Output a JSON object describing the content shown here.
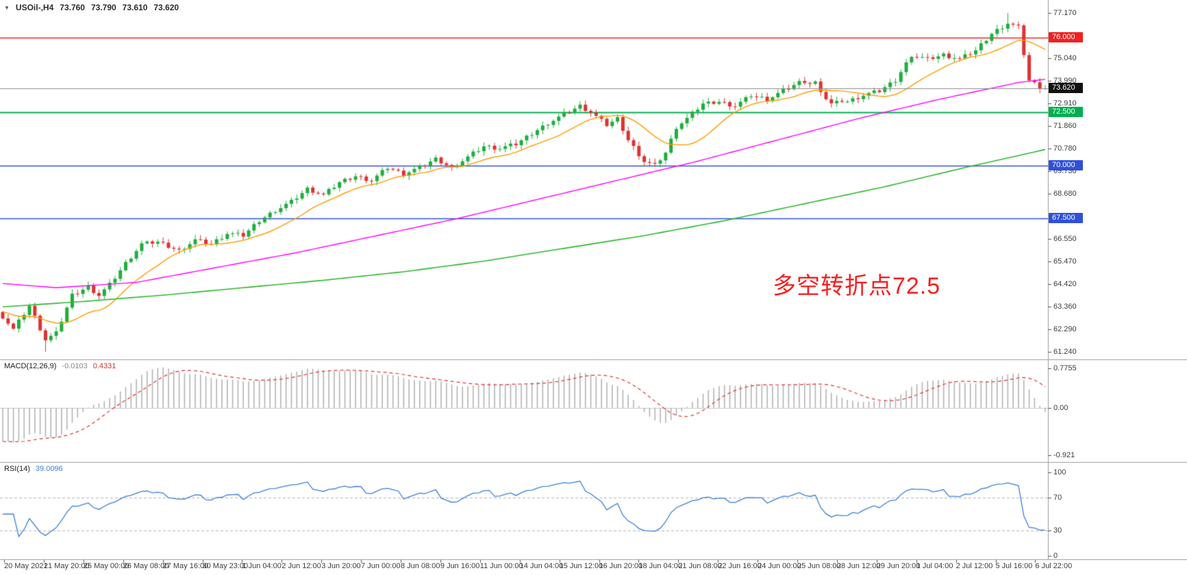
{
  "title": {
    "marker": "▼",
    "symbol": "USOil-,H4",
    "open": "73.760",
    "high": "73.790",
    "low": "73.610",
    "close": "73.620"
  },
  "annotation": {
    "text": "多空转折点72.5",
    "color": "#f61f1f"
  },
  "colors": {
    "bull": "#1fae3d",
    "bear": "#e03131",
    "ma_fast": "#ff9c00",
    "ma_mid": "#ff00ff",
    "ma_slow": "#2eb82e",
    "macd_hist": "#b3b3b3",
    "macd_signal": "#e03131",
    "rsi_line": "#3d7fd6",
    "current_price_badge": "#111111",
    "axis_text": "#3c3c3c"
  },
  "chart_data": {
    "type": "candlestick",
    "title": "USOil-,H4",
    "timeframe": "H4",
    "price_axis_range": [
      60.88,
      77.78
    ],
    "price_axis_ticks": [
      "77.170",
      "75.040",
      "73.990",
      "72.910",
      "71.860",
      "70.780",
      "69.730",
      "68.680",
      "66.550",
      "65.470",
      "64.420",
      "63.360",
      "62.290",
      "61.240"
    ],
    "levels": [
      {
        "value": 76.0,
        "label": "76.000",
        "color": "#f02020",
        "width": 1.4
      },
      {
        "value": 72.5,
        "label": "72.500",
        "color": "#00b050",
        "width": 2
      },
      {
        "value": 70.0,
        "label": "70.000",
        "color": "#3050d8",
        "width": 1.6
      },
      {
        "value": 67.5,
        "label": "67.500",
        "color": "#3050d8",
        "width": 1.6
      }
    ],
    "current_price": {
      "value": 73.62,
      "label": "73.620"
    },
    "time_labels": [
      "20 May 2021",
      "21 May 20:00",
      "25 May 00:00",
      "26 May 08:00",
      "27 May 16:00",
      "30 May 23:00",
      "1 Jun 04:00",
      "2 Jun 12:00",
      "3 Jun 20:00",
      "7 Jun 00:00",
      "8 Jun 08:00",
      "9 Jun 16:00",
      "11 Jun 00:00",
      "14 Jun 04:00",
      "15 Jun 12:00",
      "16 Jun 20:00",
      "18 Jun 04:00",
      "21 Jun 08:00",
      "22 Jun 16:00",
      "24 Jun 00:00",
      "25 Jun 08:00",
      "28 Jun 12:00",
      "29 Jun 20:00",
      "1 Jul 04:00",
      "2 Jul 12:00",
      "5 Jul 16:00",
      "6 Jul 22:00"
    ],
    "closes": [
      62.9,
      62.6,
      62.3,
      62.67,
      63.03,
      63.4,
      62.87,
      62.33,
      61.8,
      61.95,
      62.1,
      62.7,
      63.3,
      63.9,
      64.03,
      64.17,
      64.3,
      64.1,
      63.9,
      64.15,
      64.4,
      64.73,
      65.07,
      65.4,
      65.7,
      66.0,
      66.3,
      66.33,
      66.37,
      66.4,
      66.3,
      66.2,
      66.1,
      66.0,
      66.17,
      66.33,
      66.5,
      66.43,
      66.37,
      66.3,
      66.47,
      66.63,
      66.8,
      66.77,
      66.73,
      66.7,
      66.93,
      67.17,
      67.4,
      67.57,
      67.73,
      67.9,
      68.03,
      68.17,
      68.3,
      68.5,
      68.7,
      68.9,
      68.8,
      68.7,
      68.6,
      68.8,
      69.0,
      69.2,
      69.3,
      69.4,
      69.5,
      69.43,
      69.37,
      69.3,
      69.5,
      69.7,
      69.9,
      69.8,
      69.7,
      69.6,
      69.7,
      69.8,
      69.9,
      70.03,
      70.17,
      70.3,
      70.17,
      70.03,
      69.9,
      70.07,
      70.23,
      70.4,
      70.57,
      70.73,
      70.9,
      70.87,
      70.83,
      70.8,
      70.87,
      70.93,
      71.0,
      71.17,
      71.33,
      71.5,
      71.67,
      71.83,
      72.0,
      72.13,
      72.27,
      72.4,
      72.53,
      72.67,
      72.8,
      72.65,
      72.5,
      72.3,
      72.1,
      71.9,
      72.05,
      72.2,
      71.7,
      71.2,
      70.87,
      70.53,
      70.2,
      70.1,
      70.0,
      70.3,
      70.6,
      71.2,
      71.8,
      72.0,
      72.2,
      72.43,
      72.67,
      72.9,
      72.93,
      72.97,
      73.0,
      72.93,
      72.87,
      72.8,
      72.97,
      73.13,
      73.3,
      73.23,
      73.17,
      73.1,
      73.23,
      73.37,
      73.5,
      73.63,
      73.77,
      73.9,
      73.95,
      73.85,
      73.9,
      73.55,
      73.15,
      72.9,
      72.95,
      73.05,
      73.0,
      73.1,
      73.2,
      73.3,
      73.37,
      73.43,
      73.5,
      73.67,
      73.83,
      74.0,
      74.4,
      74.8,
      75.2,
      75.13,
      75.07,
      75.0,
      75.07,
      75.13,
      75.2,
      75.13,
      75.07,
      75.0,
      75.13,
      75.27,
      75.4,
      75.67,
      75.93,
      76.2,
      76.37,
      76.53,
      76.7,
      76.6,
      76.5,
      75.25,
      74.0,
      73.85,
      73.7,
      73.62
    ],
    "indicators": {
      "ma_fast": {
        "type": "sma",
        "period": 13,
        "color": "#ff9c00"
      },
      "ma_mid": {
        "color": "#ff00ff",
        "anchors": [
          [
            0,
            64.45
          ],
          [
            10,
            64.25
          ],
          [
            25,
            64.5
          ],
          [
            40,
            65.2
          ],
          [
            55,
            65.9
          ],
          [
            70,
            66.7
          ],
          [
            85,
            67.5
          ],
          [
            100,
            68.4
          ],
          [
            115,
            69.3
          ],
          [
            130,
            70.2
          ],
          [
            145,
            71.2
          ],
          [
            160,
            72.2
          ],
          [
            175,
            73.1
          ],
          [
            190,
            73.9
          ],
          [
            195,
            74.05
          ]
        ]
      },
      "ma_slow": {
        "color": "#2eb82e",
        "anchors": [
          [
            0,
            63.35
          ],
          [
            15,
            63.6
          ],
          [
            30,
            63.9
          ],
          [
            45,
            64.25
          ],
          [
            60,
            64.6
          ],
          [
            75,
            65.0
          ],
          [
            90,
            65.5
          ],
          [
            105,
            66.1
          ],
          [
            120,
            66.7
          ],
          [
            135,
            67.4
          ],
          [
            150,
            68.2
          ],
          [
            165,
            69.0
          ],
          [
            180,
            69.9
          ],
          [
            195,
            70.75
          ]
        ]
      },
      "macd": {
        "label": "MACD(12,26,9)",
        "value_main": "-0.0103",
        "value_signal": "0.4331",
        "params": [
          12,
          26,
          9
        ],
        "axis_ticks": [
          "0.7755",
          "0.00",
          "-0.921"
        ]
      },
      "rsi": {
        "label": "RSI(14)",
        "value": "39.0096",
        "period": 14,
        "axis_ticks": [
          "100",
          "70",
          "30",
          "0"
        ],
        "levels": [
          70,
          30
        ]
      }
    }
  }
}
